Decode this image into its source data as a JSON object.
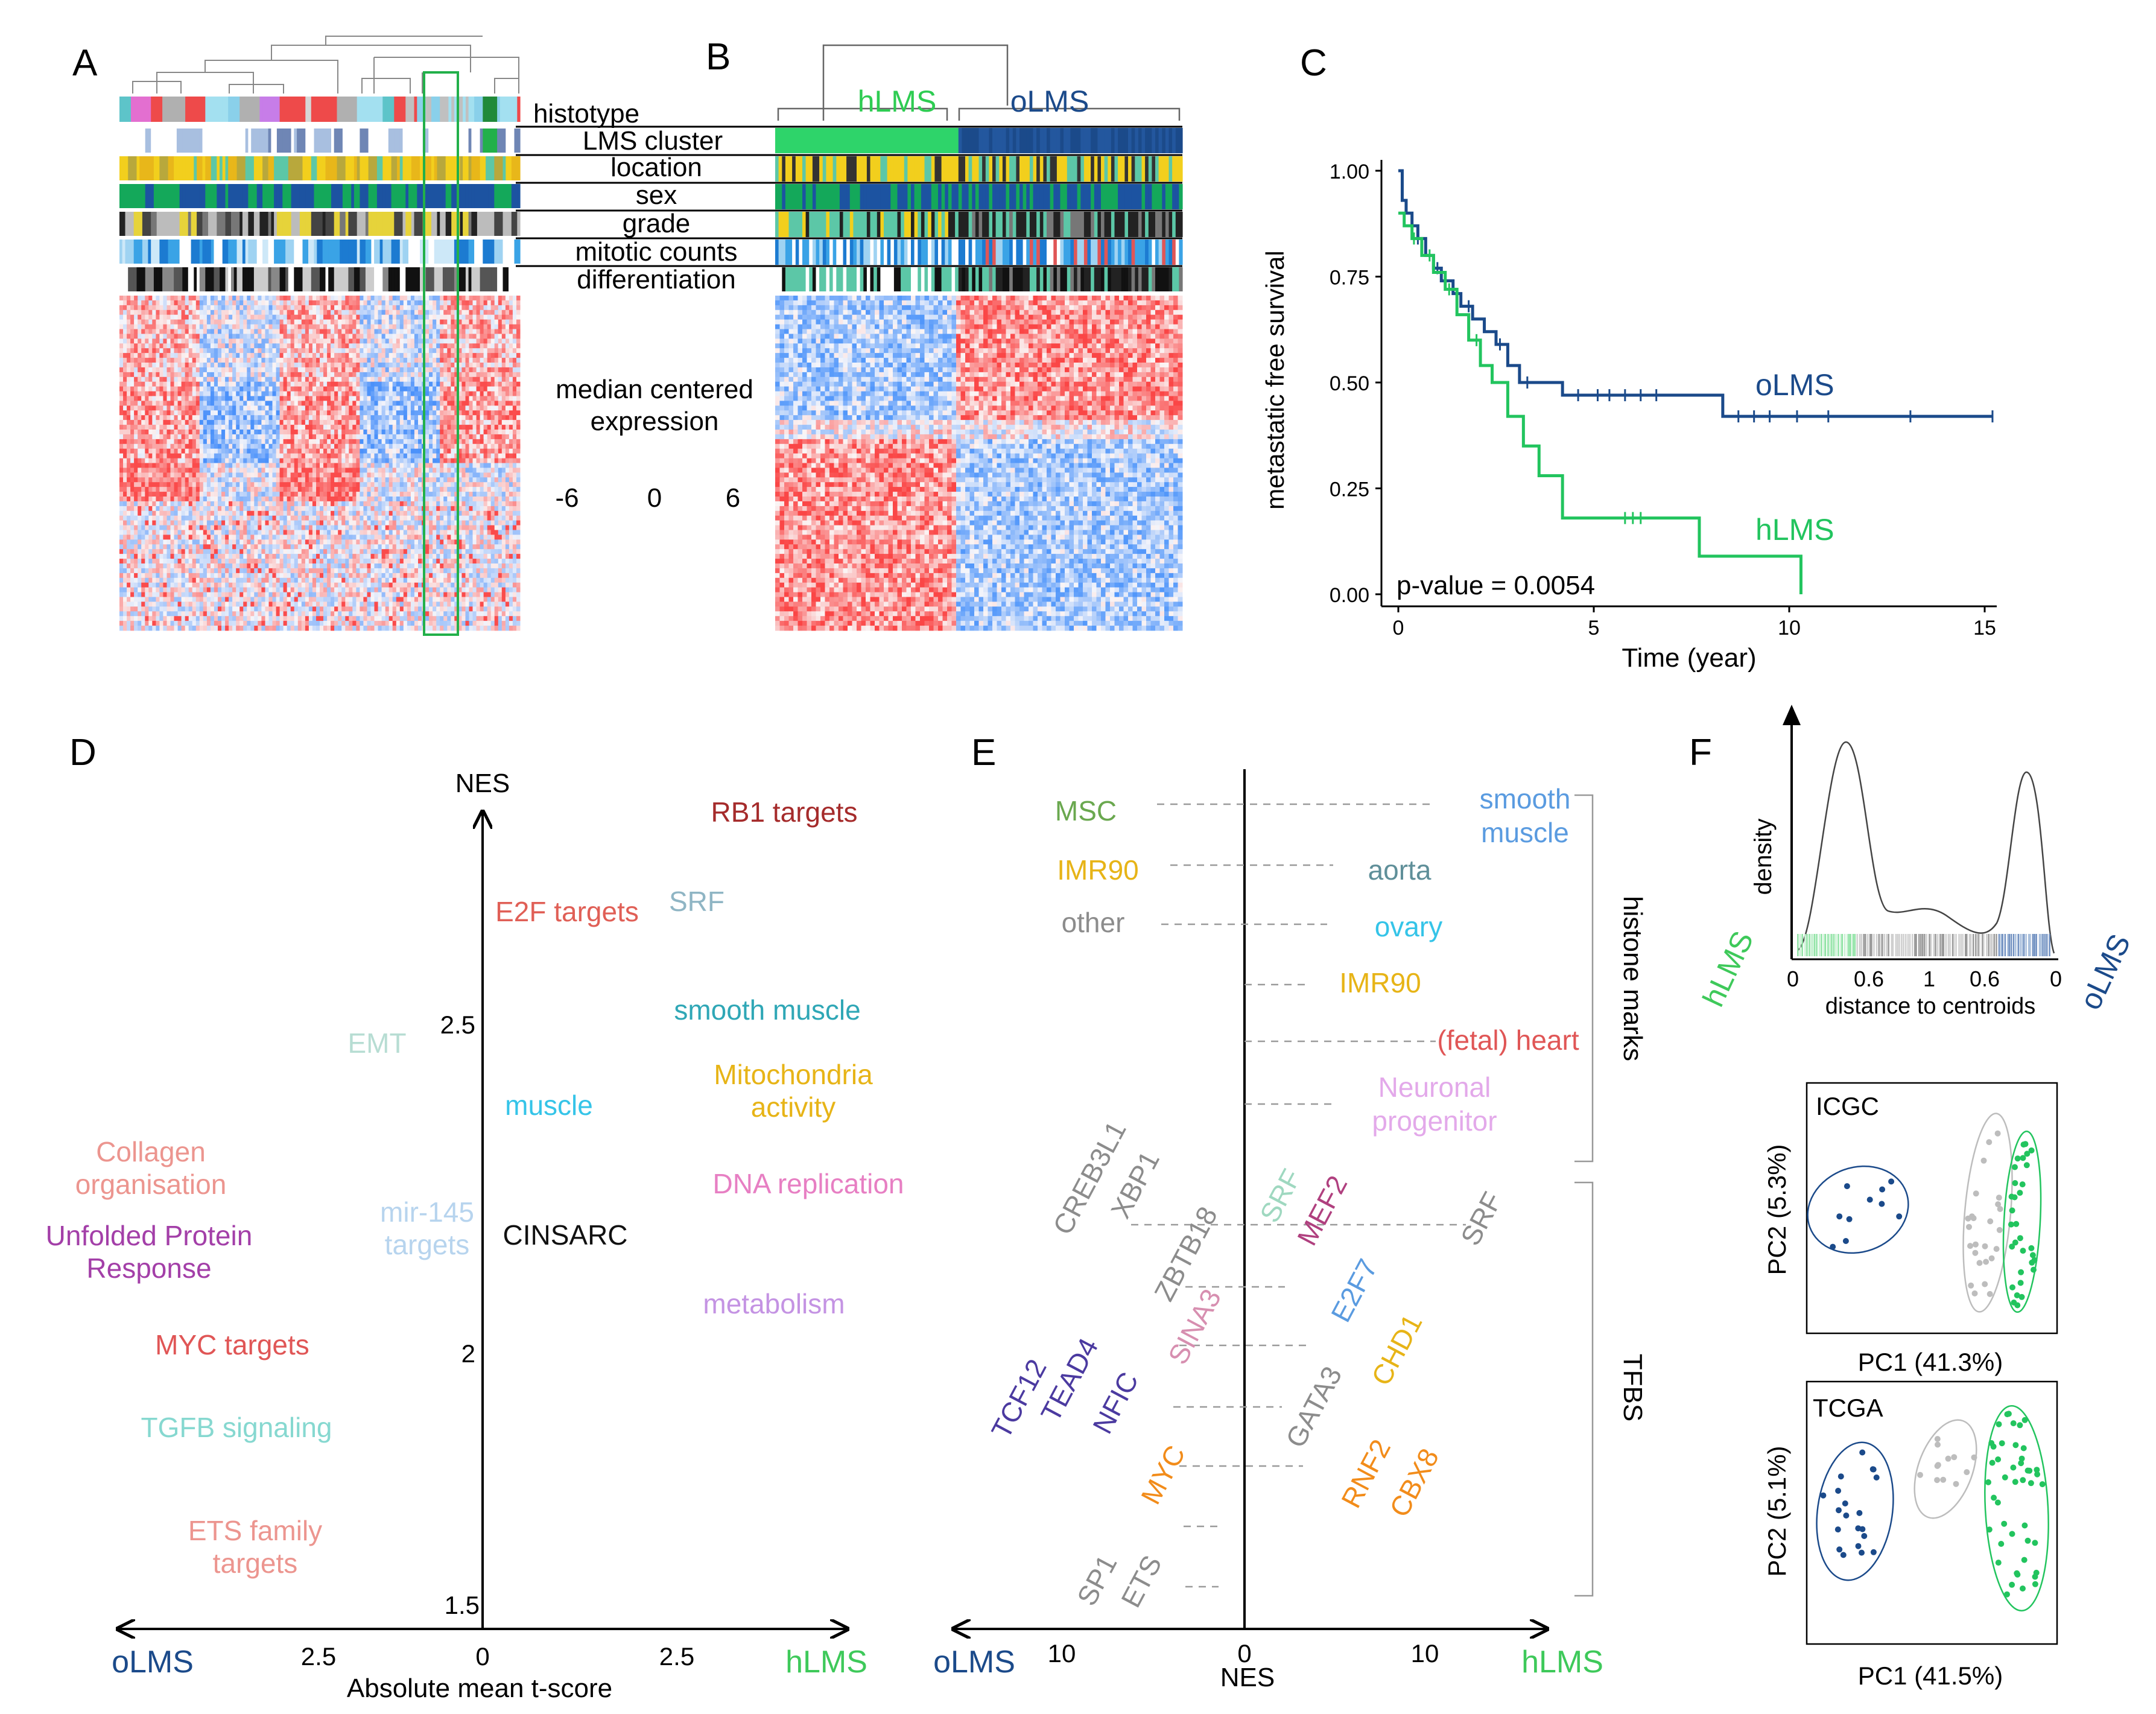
{
  "panels": {
    "A": {
      "letter": "A",
      "track_labels": [
        "histotype",
        "LMS cluster",
        "location",
        "sex",
        "grade",
        "mitotic counts",
        "differentiation"
      ],
      "legend_title_line1": "median centered",
      "legend_title_line2": "expression",
      "legend_ticks": [
        "-6",
        "0",
        "6"
      ]
    },
    "B": {
      "letter": "B",
      "group_hlms": "hLMS",
      "group_olms": "oLMS"
    },
    "C": {
      "letter": "C",
      "chart_data": {
        "type": "line",
        "title": "",
        "xlabel": "Time (year)",
        "ylabel": "metastatic free survival",
        "xlim": [
          0,
          15
        ],
        "ylim": [
          0,
          1
        ],
        "xticks": [
          "0",
          "5",
          "10",
          "15"
        ],
        "yticks": [
          "0.00",
          "0.25",
          "0.50",
          "0.75",
          "1.00"
        ],
        "annotation": "p-value = 0.0054",
        "series": [
          {
            "name": "oLMS",
            "color": "#1b4a8a",
            "x": [
              0,
              0.1,
              0.2,
              0.35,
              0.5,
              0.7,
              0.9,
              1.1,
              1.4,
              1.6,
              1.9,
              2.2,
              2.5,
              2.8,
              3.1,
              4.2,
              8.3,
              15.2
            ],
            "y": [
              1.0,
              0.93,
              0.9,
              0.87,
              0.84,
              0.8,
              0.77,
              0.74,
              0.71,
              0.68,
              0.65,
              0.62,
              0.59,
              0.54,
              0.5,
              0.47,
              0.42,
              0.42
            ]
          },
          {
            "name": "hLMS",
            "color": "#22c45e",
            "x": [
              0,
              0.15,
              0.35,
              0.6,
              0.9,
              1.2,
              1.5,
              1.8,
              2.1,
              2.4,
              2.8,
              3.2,
              3.6,
              4.2,
              7.7,
              10.3
            ],
            "y": [
              0.9,
              0.87,
              0.84,
              0.8,
              0.76,
              0.72,
              0.66,
              0.6,
              0.54,
              0.5,
              0.42,
              0.35,
              0.28,
              0.18,
              0.09,
              0.0
            ]
          }
        ]
      }
    },
    "D": {
      "letter": "D",
      "chart_data": {
        "type": "scatter",
        "title": "",
        "xlabel": "Absolute mean t-score",
        "ylabel": "NES",
        "x_left_label": "oLMS",
        "x_right_label": "hLMS",
        "xticks": [
          "2.5",
          "0",
          "2.5"
        ],
        "yticks": [
          "2.5",
          "2",
          "1.5"
        ],
        "points": [
          {
            "line1": "RB1 targets",
            "line2": "",
            "color": "#a52b2b"
          },
          {
            "line1": "E2F targets",
            "line2": "",
            "color": "#e05f56"
          },
          {
            "line1": "SRF",
            "line2": "",
            "color": "#8fb5c4"
          },
          {
            "line1": "EMT",
            "line2": "",
            "color": "#b7ddd3"
          },
          {
            "line1": "smooth muscle",
            "line2": "",
            "color": "#2fa7b6"
          },
          {
            "line1": "muscle",
            "line2": "",
            "color": "#35c4e8"
          },
          {
            "line1": "Mitochondria",
            "line2": "activity",
            "color": "#e7b417"
          },
          {
            "line1": "Collagen",
            "line2": "organisation",
            "color": "#ec958f"
          },
          {
            "line1": "DNA replication",
            "line2": "",
            "color": "#e77fc3"
          },
          {
            "line1": "Unfolded Protein",
            "line2": "Response",
            "color": "#a33fa8"
          },
          {
            "line1": "mir-145",
            "line2": "targets",
            "color": "#b7d4ee"
          },
          {
            "line1": "CINSARC",
            "line2": "",
            "color": "#111111"
          },
          {
            "line1": "metabolism",
            "line2": "",
            "color": "#c493e3"
          },
          {
            "line1": "MYC targets",
            "line2": "",
            "color": "#e05656"
          },
          {
            "line1": "TGFB signaling",
            "line2": "",
            "color": "#86d8d0"
          },
          {
            "line1": "ETS family",
            "line2": "targets",
            "color": "#ec958f"
          }
        ]
      }
    },
    "E": {
      "letter": "E",
      "chart_data": {
        "type": "scatter",
        "xlabel": "NES",
        "x_left_label": "oLMS",
        "x_right_label": "hLMS",
        "xticks": [
          "10",
          "0",
          "10"
        ],
        "group_histone": "histone marks",
        "group_tfbs": "TFBS",
        "histone_left": [
          {
            "line1": "MSC",
            "line2": "",
            "color": "#6aa84f"
          },
          {
            "line1": "IMR90",
            "line2": "",
            "color": "#e7b417"
          },
          {
            "line1": "other",
            "line2": "",
            "color": "#8c8c8c"
          }
        ],
        "histone_right": [
          {
            "line1": "smooth",
            "line2": "muscle",
            "color": "#5a9be0"
          },
          {
            "line1": "aorta",
            "line2": "",
            "color": "#5f8f99"
          },
          {
            "line1": "ovary",
            "line2": "",
            "color": "#35c4e8"
          },
          {
            "line1": "IMR90",
            "line2": "",
            "color": "#e7b417"
          },
          {
            "line1": "(fetal) heart",
            "line2": "",
            "color": "#e05656"
          },
          {
            "line1": "Neuronal",
            "line2": "progenitor",
            "color": "#e3a9ea"
          }
        ],
        "tfbs": [
          {
            "label": "CREB3L1",
            "color": "#8c8c8c"
          },
          {
            "label": "XBP1",
            "color": "#8c8c8c"
          },
          {
            "label": "ZBTB18",
            "color": "#8c8c8c"
          },
          {
            "label": "SINA3",
            "color": "#d78fb0"
          },
          {
            "label": "TCF12",
            "color": "#4b3aa0"
          },
          {
            "label": "TEAD4",
            "color": "#4b3aa0"
          },
          {
            "label": "NFIC",
            "color": "#4b3aa0"
          },
          {
            "label": "MYC",
            "color": "#f28c1a"
          },
          {
            "label": "SP1",
            "color": "#8c8c8c"
          },
          {
            "label": "ETS",
            "color": "#8c8c8c"
          },
          {
            "label": "SRF",
            "color": "#9fd8c0"
          },
          {
            "label": "MEF2",
            "color": "#b0407f"
          },
          {
            "label": "E2F7",
            "color": "#5a9be0"
          },
          {
            "label": "CHD1",
            "color": "#e7b417"
          },
          {
            "label": "GATA3",
            "color": "#8c8c8c"
          },
          {
            "label": "RNF2",
            "color": "#f28c1a"
          },
          {
            "label": "CBX8",
            "color": "#f28c1a"
          },
          {
            "label": "SRF",
            "color": "#8c8c8c"
          }
        ]
      }
    },
    "F": {
      "letter": "F",
      "density_ylabel": "density",
      "density_xlabel": "distance to centroids",
      "density_ticks": [
        "0",
        "0.6",
        "1",
        "0.6",
        "0"
      ],
      "side_left": "hLMS",
      "side_right": "oLMS",
      "pca": [
        {
          "name": "ICGC",
          "xlabel": "PC1 (41.3%)",
          "ylabel": "PC2 (5.3%)"
        },
        {
          "name": "TCGA",
          "xlabel": "PC1 (41.5%)",
          "ylabel": "PC2 (5.1%)"
        }
      ]
    }
  }
}
